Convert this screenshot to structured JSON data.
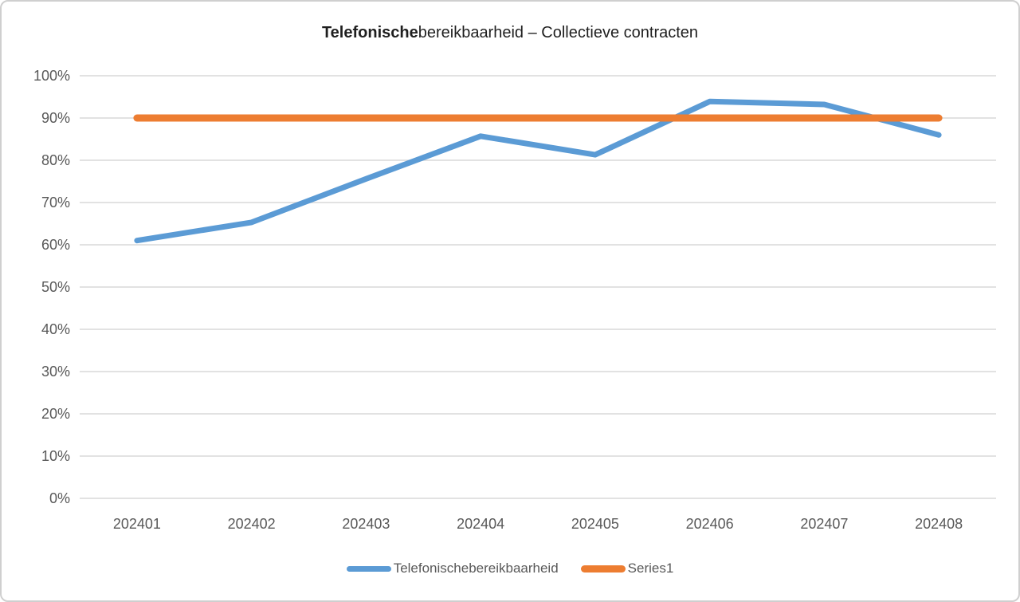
{
  "chart_data": {
    "type": "line",
    "title": "Telefonischebereikbaarheid – Collectieve contracten",
    "title_bold_part": "Telefonische",
    "title_regular_part": "bereikbaarheid – Collectieve contracten",
    "categories": [
      "202401",
      "202402",
      "202403",
      "202404",
      "202405",
      "202406",
      "202407",
      "202408"
    ],
    "series": [
      {
        "name": "Telefonischebereikbaarheid",
        "color": "#5B9BD5",
        "stroke_width": 7,
        "values": [
          61,
          65.3,
          75.6,
          85.7,
          81.3,
          93.9,
          93.2,
          86
        ]
      },
      {
        "name": "Series1",
        "color": "#ED7D31",
        "stroke_width": 9,
        "values": [
          90,
          90,
          90,
          90,
          90,
          90,
          90,
          90
        ]
      }
    ],
    "y_ticks": [
      "0%",
      "10%",
      "20%",
      "30%",
      "40%",
      "50%",
      "60%",
      "70%",
      "80%",
      "90%",
      "100%"
    ],
    "ylim": [
      0,
      100
    ],
    "xlabel": "",
    "ylabel": "",
    "grid": "horizontal",
    "legend_position": "bottom",
    "gridline_color": "#D9D9D9",
    "axis_label_color": "#595959"
  }
}
